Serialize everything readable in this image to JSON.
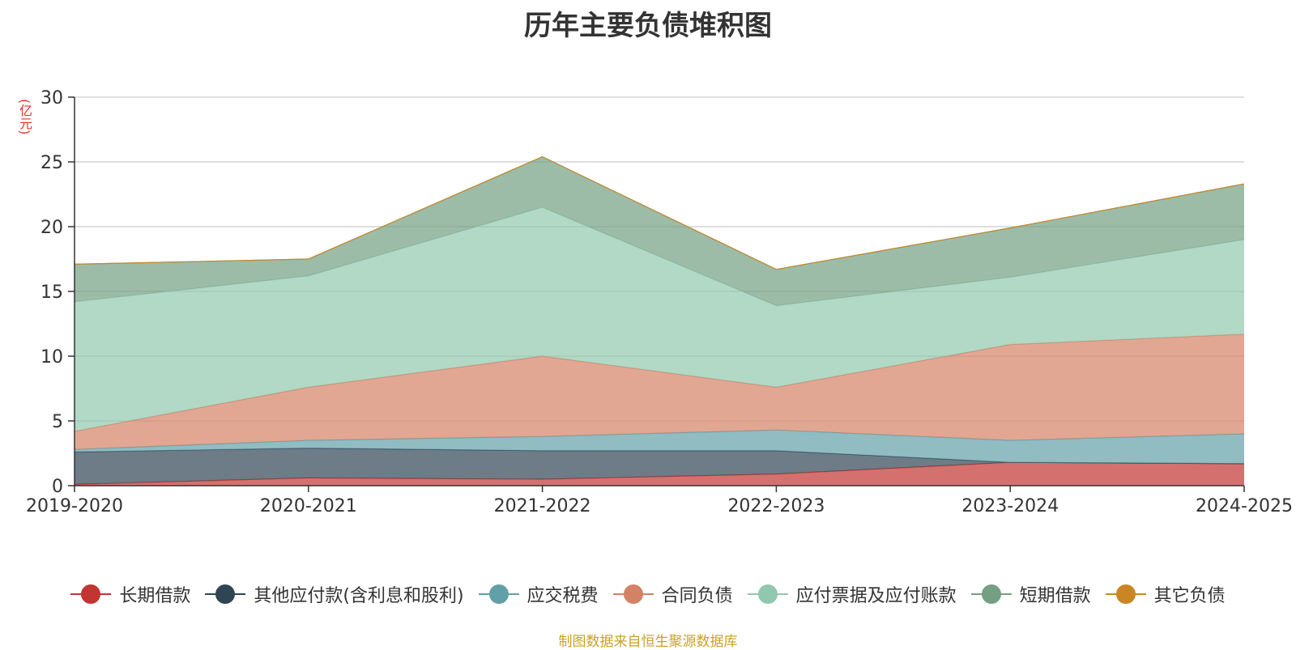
{
  "chart_data": {
    "type": "area",
    "title": "历年主要负债堆积图",
    "ylabel": "(亿元)",
    "ylim": [
      0,
      30
    ],
    "yticks": [
      0,
      5,
      10,
      15,
      20,
      25,
      30
    ],
    "grid": true,
    "stacked": true,
    "legend_position": "bottom",
    "categories": [
      "2019-2020",
      "2020-2021",
      "2021-2022",
      "2022-2023",
      "2023-2024",
      "2024-2025"
    ],
    "series": [
      {
        "name": "长期借款",
        "color": "#c23531",
        "values": [
          0.1,
          0.6,
          0.5,
          0.9,
          1.8,
          1.7
        ]
      },
      {
        "name": "其他应付款(含利息和股利)",
        "color": "#2f4554",
        "values": [
          2.5,
          2.3,
          2.2,
          1.8,
          0.0,
          0.0
        ]
      },
      {
        "name": "应交税费",
        "color": "#61a0a8",
        "values": [
          0.2,
          0.6,
          1.1,
          1.6,
          1.7,
          2.3
        ]
      },
      {
        "name": "合同负债",
        "color": "#d48265",
        "values": [
          1.4,
          4.1,
          6.2,
          3.3,
          7.4,
          7.7
        ]
      },
      {
        "name": "应付票据及应付账款",
        "color": "#91c7ae",
        "values": [
          10.0,
          8.6,
          11.5,
          6.3,
          5.2,
          7.3
        ]
      },
      {
        "name": "短期借款",
        "color": "#749f83",
        "values": [
          2.9,
          1.3,
          3.9,
          2.8,
          3.8,
          4.3
        ]
      },
      {
        "name": "其它负债",
        "color": "#ca8622",
        "values": [
          0.0,
          0.0,
          0.0,
          0.0,
          0.0,
          0.0
        ]
      }
    ]
  },
  "source_note": "制图数据来自恒生聚源数据库"
}
